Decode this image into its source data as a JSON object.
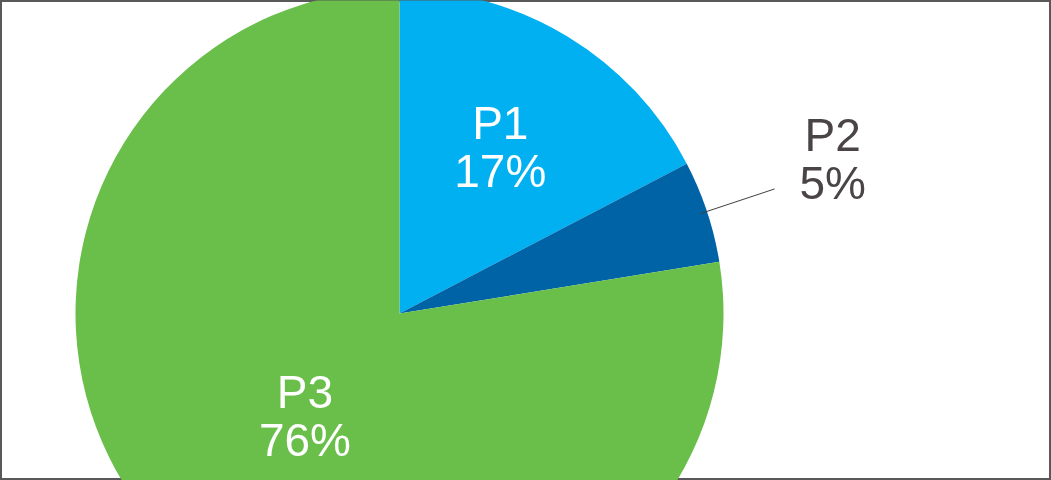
{
  "chart_data": {
    "type": "pie",
    "categories": [
      "P1",
      "P2",
      "P3"
    ],
    "values": [
      17,
      5,
      76
    ],
    "value_labels": [
      "17%",
      "5%",
      "76%"
    ],
    "colors": [
      "#00b0f0",
      "#0063a6",
      "#6abf4b"
    ]
  }
}
